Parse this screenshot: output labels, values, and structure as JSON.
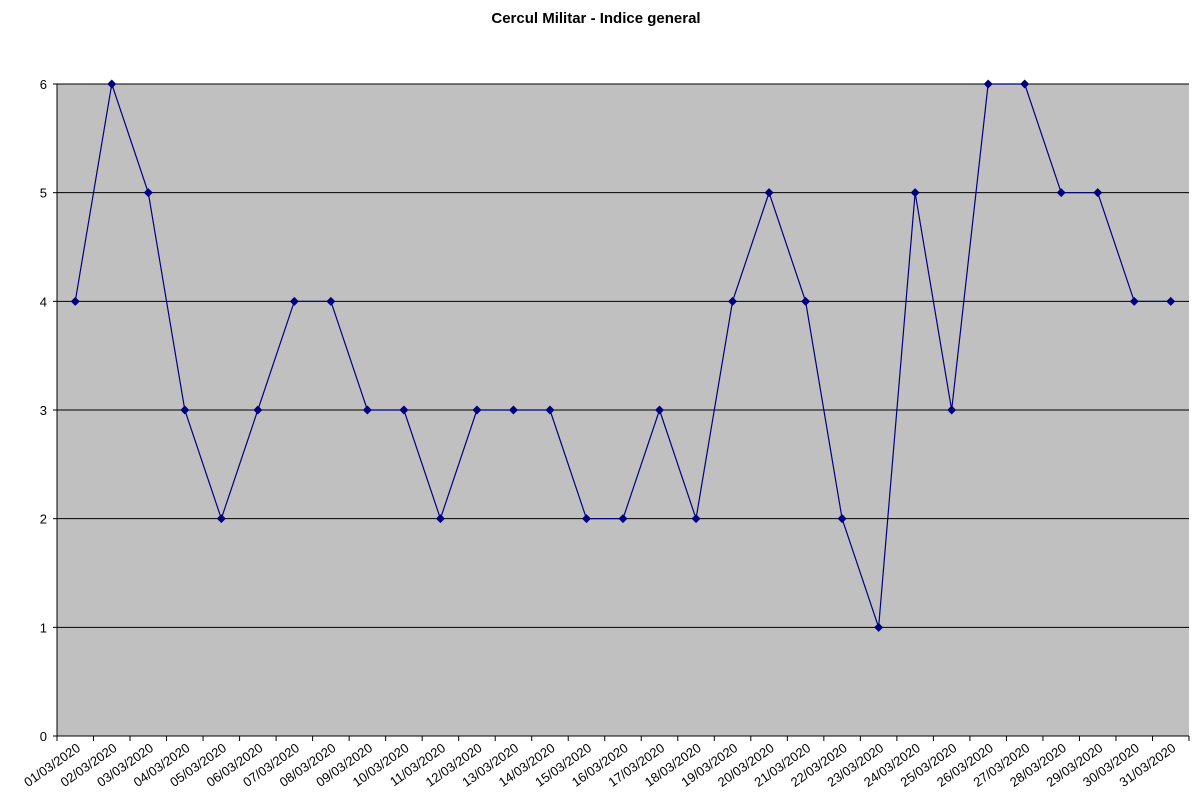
{
  "chart_data": {
    "type": "line",
    "title": "Cercul Militar - Indice general",
    "xlabel": "",
    "ylabel": "",
    "ylim": [
      0,
      6
    ],
    "yticks": [
      "0",
      "1",
      "2",
      "3",
      "4",
      "5",
      "6"
    ],
    "grid": true,
    "legend": "none",
    "categories": [
      "01/03/2020",
      "02/03/2020",
      "03/03/2020",
      "04/03/2020",
      "05/03/2020",
      "06/03/2020",
      "07/03/2020",
      "08/03/2020",
      "09/03/2020",
      "10/03/2020",
      "11/03/2020",
      "12/03/2020",
      "13/03/2020",
      "14/03/2020",
      "15/03/2020",
      "16/03/2020",
      "17/03/2020",
      "18/03/2020",
      "19/03/2020",
      "20/03/2020",
      "21/03/2020",
      "22/03/2020",
      "23/03/2020",
      "24/03/2020",
      "25/03/2020",
      "26/03/2020",
      "27/03/2020",
      "28/03/2020",
      "29/03/2020",
      "30/03/2020",
      "31/03/2020"
    ],
    "series": [
      {
        "values": [
          4,
          6,
          5,
          3,
          2,
          3,
          4,
          4,
          3,
          3,
          2,
          3,
          3,
          3,
          2,
          2,
          3,
          2,
          4,
          5,
          4,
          2,
          1,
          5,
          3,
          6,
          6,
          5,
          5,
          4,
          4
        ]
      }
    ],
    "colors": {
      "plot_background": "#c0c0c0",
      "line": "#000080",
      "marker": "#000080",
      "gridline": "#000000",
      "axis": "#000000"
    }
  }
}
